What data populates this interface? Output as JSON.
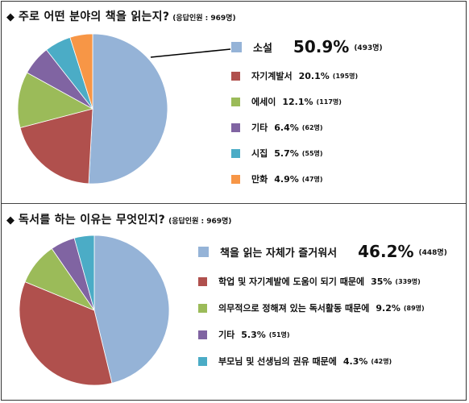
{
  "chart_data": [
    {
      "type": "pie",
      "title": "주로 어떤 분야의 책을 읽는지?",
      "subtitle": "(응답인원 : 969명)",
      "categories": [
        "소설",
        "자기계발서",
        "에세이",
        "기타",
        "시집",
        "만화"
      ],
      "values": [
        50.9,
        20.1,
        12.1,
        6.4,
        5.7,
        4.9
      ],
      "pct_labels": [
        "50.9%",
        "20.1%",
        "12.1%",
        "6.4%",
        "5.7%",
        "4.9%"
      ],
      "counts": [
        "(493명)",
        "(195명)",
        "(117명)",
        "(62명)",
        "(55명)",
        "(47명)"
      ],
      "colors": [
        "#95B3D7",
        "#B0504D",
        "#9BBB59",
        "#8064A2",
        "#4BACC6",
        "#F79646"
      ],
      "legend": "right"
    },
    {
      "type": "pie",
      "title": "독서를 하는 이유는 무엇인지?",
      "subtitle": "(응답인원 : 969명)",
      "categories": [
        "책을 읽는 자체가 즐거워서",
        "학업 및 자기계발에 도움이 되기 때문에",
        "의무적으로 정해져 있는 독서활동 때문에",
        "기타",
        "부모님 및 선생님의 권유 때문에"
      ],
      "values": [
        46.2,
        35,
        9.2,
        5.3,
        4.3
      ],
      "pct_labels": [
        "46.2%",
        "35%",
        "9.2%",
        "5.3%",
        "4.3%"
      ],
      "counts": [
        "(448명)",
        "(339명)",
        "(89명)",
        "(51명)",
        "(42명)"
      ],
      "colors": [
        "#95B3D7",
        "#B0504D",
        "#9BBB59",
        "#8064A2",
        "#4BACC6"
      ],
      "legend": "right"
    }
  ],
  "icons": {
    "bullet": "black-diamond-icon"
  },
  "bullet_glyph": "◆"
}
